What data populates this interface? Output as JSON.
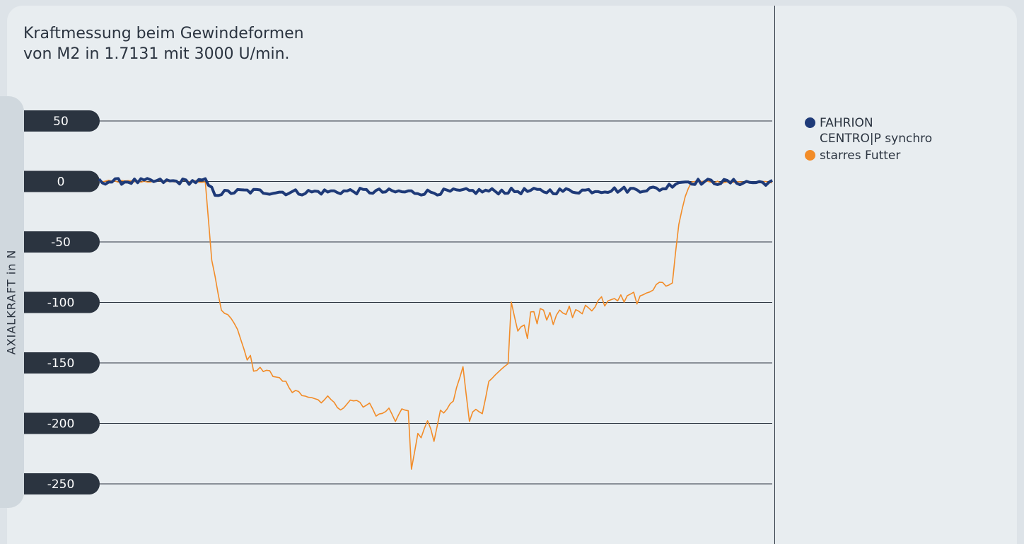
{
  "colors": {
    "background": "#e8edf0",
    "tick_label_bg": "#2b3440",
    "tick_label_text": "#ffffff",
    "grid": "#2b3440",
    "series_fahrion": "#1e3a78",
    "series_starr": "#f28c28"
  },
  "chart_data": {
    "type": "line",
    "title_line1": "Kraftmessung beim Gewindeformen",
    "title_line2": "von M2 in 1.7131 mit 3000 U/min.",
    "ylabel": "AXIALKRAFT in N",
    "xlabel": "",
    "ylim": [
      -250,
      50
    ],
    "yticks": [
      50,
      0,
      -50,
      -100,
      -150,
      -200,
      -250
    ],
    "ytick_labels": [
      "50",
      "0",
      "-50",
      "-100",
      "-150",
      "-200",
      "-250"
    ],
    "grid": true,
    "legend_position": "right",
    "x_count": 210,
    "series": [
      {
        "name": "FAHRION CENTRO|P synchro",
        "legend_line1": "FAHRION",
        "legend_line2": "CENTRO|P synchro",
        "color": "#1e3a78",
        "keypoints": [
          [
            0,
            0
          ],
          [
            33,
            0
          ],
          [
            36,
            -10
          ],
          [
            45,
            -8
          ],
          [
            60,
            -9
          ],
          [
            80,
            -8
          ],
          [
            100,
            -9
          ],
          [
            120,
            -8
          ],
          [
            140,
            -8
          ],
          [
            160,
            -7
          ],
          [
            175,
            -6
          ],
          [
            180,
            0
          ],
          [
            210,
            -1
          ]
        ]
      },
      {
        "name": "starres Futter",
        "legend_line1": "starres Futter",
        "color": "#f28c28",
        "keypoints": [
          [
            0,
            0
          ],
          [
            33,
            0
          ],
          [
            35,
            -65
          ],
          [
            38,
            -107
          ],
          [
            40,
            -110
          ],
          [
            43,
            -122
          ],
          [
            46,
            -148
          ],
          [
            47,
            -143
          ],
          [
            48,
            -157
          ],
          [
            50,
            -154
          ],
          [
            51,
            -157
          ],
          [
            53,
            -156
          ],
          [
            54,
            -161
          ],
          [
            56,
            -162
          ],
          [
            57,
            -166
          ],
          [
            58,
            -165
          ],
          [
            60,
            -174
          ],
          [
            61,
            -172
          ],
          [
            63,
            -176
          ],
          [
            65,
            -178
          ],
          [
            67,
            -179
          ],
          [
            69,
            -183
          ],
          [
            71,
            -178
          ],
          [
            73,
            -183
          ],
          [
            75,
            -189
          ],
          [
            76,
            -187
          ],
          [
            78,
            -181
          ],
          [
            80,
            -181
          ],
          [
            82,
            -186
          ],
          [
            84,
            -184
          ],
          [
            86,
            -193
          ],
          [
            88,
            -192
          ],
          [
            90,
            -188
          ],
          [
            92,
            -198
          ],
          [
            94,
            -189
          ],
          [
            96,
            -189
          ],
          [
            97,
            -238
          ],
          [
            99,
            -209
          ],
          [
            100,
            -212
          ],
          [
            102,
            -197
          ],
          [
            104,
            -214
          ],
          [
            106,
            -189
          ],
          [
            107,
            -192
          ],
          [
            108,
            -188
          ],
          [
            110,
            -181
          ],
          [
            111,
            -171
          ],
          [
            113,
            -153
          ],
          [
            115,
            -198
          ],
          [
            116,
            -191
          ],
          [
            117,
            -189
          ],
          [
            119,
            -193
          ],
          [
            121,
            -166
          ],
          [
            123,
            -159
          ],
          [
            125,
            -155
          ],
          [
            127,
            -151
          ],
          [
            128,
            -100
          ],
          [
            130,
            -124
          ],
          [
            131,
            -121
          ],
          [
            132,
            -119
          ],
          [
            133,
            -129
          ],
          [
            134,
            -108
          ],
          [
            135,
            -107
          ],
          [
            136,
            -118
          ],
          [
            137,
            -105
          ],
          [
            138,
            -106
          ],
          [
            139,
            -115
          ],
          [
            140,
            -108
          ],
          [
            141,
            -118
          ],
          [
            142,
            -110
          ],
          [
            143,
            -106
          ],
          [
            145,
            -110
          ],
          [
            146,
            -104
          ],
          [
            147,
            -113
          ],
          [
            148,
            -106
          ],
          [
            149,
            -108
          ],
          [
            150,
            -110
          ],
          [
            151,
            -102
          ],
          [
            153,
            -107
          ],
          [
            154,
            -103
          ],
          [
            156,
            -95
          ],
          [
            157,
            -102
          ],
          [
            158,
            -99
          ],
          [
            160,
            -96
          ],
          [
            161,
            -98
          ],
          [
            162,
            -93
          ],
          [
            163,
            -99
          ],
          [
            164,
            -95
          ],
          [
            166,
            -92
          ],
          [
            167,
            -101
          ],
          [
            168,
            -94
          ],
          [
            170,
            -93
          ],
          [
            172,
            -89
          ],
          [
            174,
            -83
          ],
          [
            176,
            -86
          ],
          [
            178,
            -84
          ],
          [
            180,
            -35
          ],
          [
            182,
            -12
          ],
          [
            184,
            0
          ],
          [
            210,
            -1
          ]
        ]
      }
    ]
  }
}
